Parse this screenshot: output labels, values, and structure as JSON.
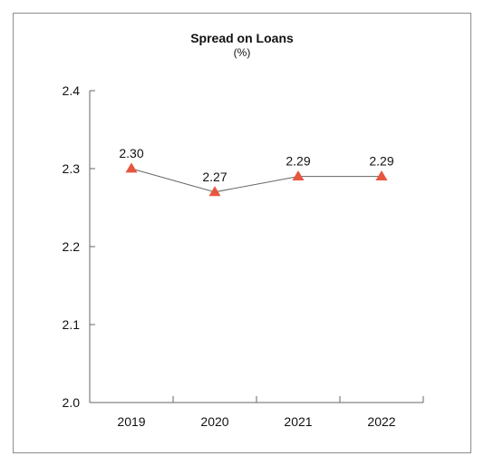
{
  "chart_data": {
    "type": "line",
    "title": "Spread on Loans",
    "subtitle": "(%)",
    "xlabel": "",
    "ylabel": "",
    "categories": [
      "2019",
      "2020",
      "2021",
      "2022"
    ],
    "series": [
      {
        "values": [
          2.3,
          2.27,
          2.29,
          2.29
        ],
        "data_labels": [
          "2.30",
          "2.27",
          "2.29",
          "2.29"
        ]
      }
    ],
    "ylim": [
      2.0,
      2.4
    ],
    "y_ticks": [
      "2.0",
      "2.1",
      "2.2",
      "2.3",
      "2.4"
    ],
    "grid": false,
    "legend": "none",
    "line_color": "#666666",
    "marker": "triangle",
    "marker_color": "#e8553f"
  }
}
